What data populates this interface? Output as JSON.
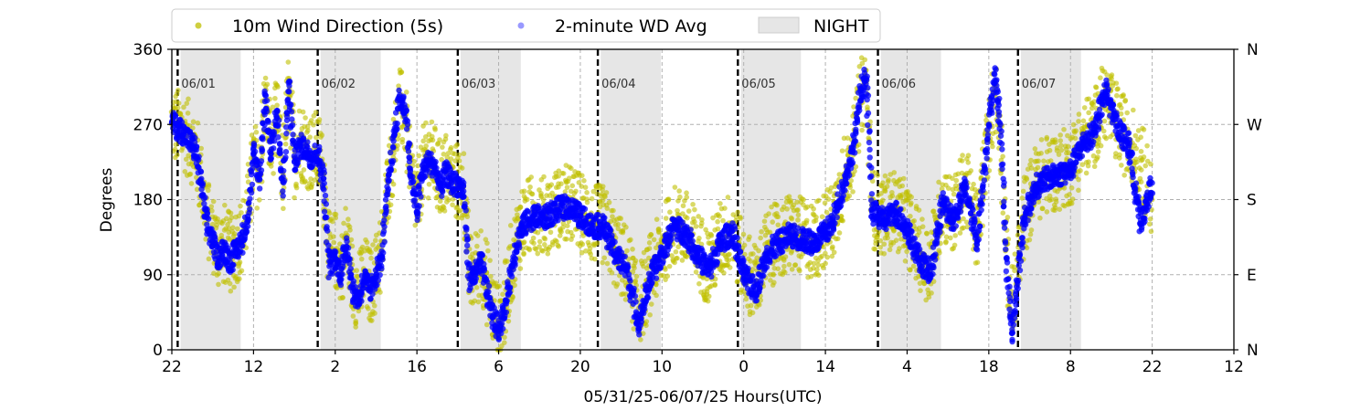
{
  "chart_data": {
    "type": "scatter",
    "xlabel": "05/31/25-06/07/25  Hours(UTC)",
    "ylabel": "Degrees",
    "x_range_hours": [
      0,
      182
    ],
    "x_start_label": "22",
    "ylim": [
      0,
      360
    ],
    "y_ticks": [
      0,
      90,
      180,
      270,
      360
    ],
    "y_tick_labels": [
      "0",
      "90",
      "180",
      "270",
      "360"
    ],
    "y2_tick_labels": [
      "N",
      "E",
      "S",
      "W",
      "N"
    ],
    "x_ticks_hours": [
      0,
      14,
      28,
      42,
      56,
      70,
      84,
      98,
      112,
      126,
      140,
      154,
      168,
      182
    ],
    "x_tick_labels": [
      "22",
      "12",
      "2",
      "16",
      "6",
      "20",
      "10",
      "0",
      "14",
      "4",
      "18",
      "8",
      "22",
      "12"
    ],
    "grid": true,
    "legend_position": "top",
    "legend": [
      {
        "label": "10m Wind Direction (5s)",
        "color": "#bfbf00",
        "kind": "marker"
      },
      {
        "label": "2-minute WD Avg",
        "color": "#0000ff",
        "kind": "marker"
      },
      {
        "label": "NIGHT",
        "color": "#e6e6e6",
        "kind": "patch"
      }
    ],
    "day_markers": [
      {
        "hour": 1,
        "label": "06/01"
      },
      {
        "hour": 25,
        "label": "06/02"
      },
      {
        "hour": 49,
        "label": "06/03"
      },
      {
        "hour": 73,
        "label": "06/04"
      },
      {
        "hour": 97,
        "label": "06/05"
      },
      {
        "hour": 121,
        "label": "06/06"
      },
      {
        "hour": 145,
        "label": "06/07"
      }
    ],
    "night_spans_hours": [
      [
        1.5,
        11.8
      ],
      [
        25.5,
        35.8
      ],
      [
        49.5,
        59.8
      ],
      [
        73.5,
        83.8
      ],
      [
        97.5,
        107.8
      ],
      [
        121.5,
        131.8
      ],
      [
        145.5,
        155.8
      ]
    ],
    "series": [
      {
        "name": "10m Wind Direction (5s)",
        "color": "#bfbf00",
        "x": [
          0,
          2,
          4,
          5,
          6,
          7,
          8,
          9,
          10,
          11,
          12,
          13,
          14,
          15,
          16,
          17,
          18,
          19,
          20,
          21,
          22,
          23,
          24,
          25,
          26,
          27,
          28,
          29,
          30,
          31,
          32,
          33,
          34,
          35,
          36,
          37,
          38,
          39,
          40,
          41,
          42,
          43,
          44,
          45,
          46,
          47,
          48,
          49,
          50,
          51,
          52,
          53,
          54,
          55,
          56,
          57,
          58,
          59,
          60,
          62,
          64,
          66,
          68,
          70,
          72,
          74,
          76,
          78,
          80,
          82,
          84,
          86,
          88,
          90,
          92,
          94,
          96,
          98,
          100,
          102,
          104,
          106,
          108,
          110,
          112,
          113,
          114,
          115,
          116,
          117,
          118,
          119,
          120,
          122,
          124,
          126,
          128,
          130,
          132,
          134,
          136,
          138,
          140,
          141,
          142,
          143,
          144,
          146,
          148,
          150,
          152,
          154,
          156,
          158,
          160,
          162,
          164,
          166,
          168
        ],
        "y": [
          270,
          262,
          240,
          205,
          160,
          140,
          120,
          128,
          115,
          125,
          135,
          165,
          230,
          210,
          300,
          240,
          280,
          200,
          310,
          230,
          250,
          245,
          235,
          240,
          210,
          110,
          120,
          100,
          135,
          80,
          70,
          90,
          75,
          95,
          120,
          200,
          240,
          290,
          280,
          210,
          170,
          220,
          230,
          225,
          200,
          215,
          205,
          200,
          195,
          90,
          95,
          110,
          80,
          50,
          30,
          50,
          95,
          130,
          150,
          165,
          160,
          170,
          175,
          165,
          150,
          150,
          120,
          100,
          50,
          90,
          120,
          150,
          145,
          120,
          100,
          130,
          145,
          100,
          80,
          120,
          130,
          140,
          135,
          130,
          145,
          150,
          175,
          200,
          225,
          245,
          300,
          320,
          170,
          160,
          170,
          150,
          120,
          100,
          180,
          160,
          200,
          140,
          260,
          310,
          260,
          120,
          40,
          160,
          200,
          210,
          215,
          220,
          250,
          265,
          300,
          270,
          250,
          230,
          180
        ]
      },
      {
        "name": "2-minute WD Avg",
        "color": "#0000ff",
        "x": [
          0,
          2,
          4,
          5,
          6,
          7,
          8,
          9,
          10,
          11,
          12,
          13,
          14,
          15,
          16,
          17,
          18,
          19,
          20,
          21,
          22,
          23,
          24,
          25,
          26,
          27,
          28,
          29,
          30,
          31,
          32,
          33,
          34,
          35,
          36,
          37,
          38,
          39,
          40,
          41,
          42,
          43,
          44,
          45,
          46,
          47,
          48,
          49,
          50,
          51,
          52,
          53,
          54,
          55,
          56,
          57,
          58,
          59,
          60,
          62,
          64,
          66,
          68,
          70,
          72,
          74,
          76,
          78,
          80,
          82,
          84,
          86,
          88,
          90,
          92,
          94,
          96,
          98,
          100,
          102,
          104,
          106,
          108,
          110,
          112,
          113,
          114,
          115,
          116,
          117,
          118,
          119,
          120,
          122,
          124,
          126,
          128,
          130,
          132,
          134,
          136,
          138,
          140,
          141,
          142,
          143,
          144,
          146,
          148,
          150,
          152,
          154,
          156,
          158,
          160,
          162,
          164,
          166,
          168
        ],
        "y": [
          272,
          260,
          240,
          200,
          150,
          130,
          110,
          120,
          105,
          120,
          130,
          160,
          235,
          205,
          305,
          235,
          285,
          190,
          320,
          225,
          245,
          240,
          230,
          235,
          205,
          100,
          110,
          90,
          130,
          70,
          60,
          85,
          70,
          90,
          110,
          190,
          250,
          300,
          290,
          205,
          165,
          215,
          225,
          220,
          195,
          212,
          200,
          198,
          190,
          85,
          90,
          105,
          70,
          40,
          25,
          45,
          90,
          125,
          148,
          160,
          158,
          168,
          172,
          160,
          148,
          148,
          115,
          95,
          30,
          85,
          115,
          148,
          140,
          115,
          95,
          128,
          142,
          90,
          70,
          115,
          128,
          138,
          132,
          128,
          140,
          148,
          170,
          195,
          220,
          250,
          310,
          325,
          165,
          155,
          165,
          145,
          110,
          90,
          175,
          155,
          195,
          130,
          270,
          330,
          270,
          110,
          20,
          155,
          195,
          205,
          210,
          215,
          245,
          260,
          310,
          268,
          245,
          150,
          200
        ]
      }
    ]
  }
}
